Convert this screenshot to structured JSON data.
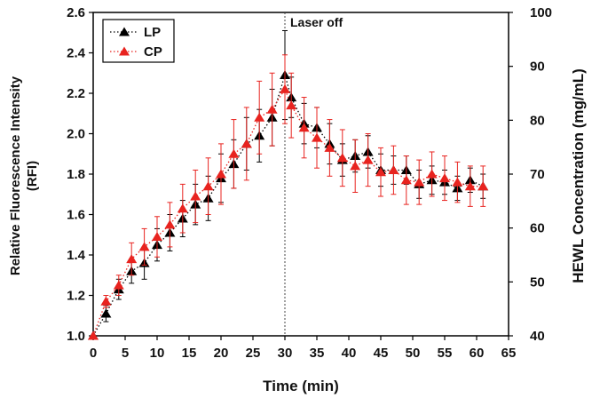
{
  "chart_data": {
    "type": "line",
    "xlabel": "Time (min)",
    "ylabel_lines": [
      "Relative Fluorescence Intensity",
      "(RFI)"
    ],
    "y2label": "HEWL Concentration (mg/mL)",
    "xlim": [
      0,
      65
    ],
    "ylim": [
      1.0,
      2.6
    ],
    "y2lim": [
      40,
      100
    ],
    "xticks": [
      "0",
      "5",
      "10",
      "15",
      "20",
      "25",
      "30",
      "35",
      "40",
      "45",
      "50",
      "55",
      "60",
      "65"
    ],
    "yticks": [
      "1.0",
      "1.2",
      "1.4",
      "1.6",
      "1.8",
      "2.0",
      "2.2",
      "2.4",
      "2.6"
    ],
    "y2ticks": [
      "40",
      "50",
      "60",
      "70",
      "80",
      "90",
      "100"
    ],
    "grid": false,
    "legend_position": "top-left",
    "annotation": {
      "text": "Laser off",
      "x": 30
    },
    "x": [
      0,
      2,
      4,
      6,
      8,
      10,
      12,
      14,
      16,
      18,
      20,
      22,
      24,
      26,
      28,
      30,
      31,
      33,
      35,
      37,
      39,
      41,
      43,
      45,
      47,
      49,
      51,
      53,
      55,
      57,
      59,
      61
    ],
    "series": [
      {
        "name": "LP",
        "color": "#000000",
        "values": [
          1.0,
          1.11,
          1.23,
          1.32,
          1.36,
          1.45,
          1.51,
          1.58,
          1.65,
          1.68,
          1.78,
          1.85,
          1.95,
          1.99,
          2.08,
          2.29,
          2.18,
          2.05,
          2.03,
          1.95,
          1.87,
          1.89,
          1.91,
          1.82,
          1.82,
          1.82,
          1.75,
          1.77,
          1.76,
          1.73,
          1.77,
          1.74
        ],
        "errors": [
          0,
          0.04,
          0.05,
          0.06,
          0.08,
          0.08,
          0.09,
          0.09,
          0.1,
          0.11,
          0.12,
          0.12,
          0.13,
          0.13,
          0.14,
          0.22,
          0.1,
          0.1,
          0.1,
          0.1,
          0.08,
          0.08,
          0.08,
          0.08,
          0.07,
          0.07,
          0.07,
          0.07,
          0.06,
          0.06,
          0.06,
          0.06
        ]
      },
      {
        "name": "CP",
        "color": "#e8231f",
        "values": [
          1.0,
          1.17,
          1.25,
          1.38,
          1.44,
          1.49,
          1.55,
          1.63,
          1.69,
          1.74,
          1.8,
          1.9,
          1.95,
          2.08,
          2.12,
          2.22,
          2.14,
          2.03,
          1.98,
          1.93,
          1.88,
          1.84,
          1.87,
          1.81,
          1.82,
          1.77,
          1.76,
          1.8,
          1.78,
          1.76,
          1.74,
          1.74
        ],
        "errors": [
          0,
          0.03,
          0.05,
          0.08,
          0.09,
          0.1,
          0.11,
          0.12,
          0.13,
          0.14,
          0.15,
          0.17,
          0.18,
          0.18,
          0.18,
          0.17,
          0.16,
          0.15,
          0.15,
          0.14,
          0.14,
          0.13,
          0.13,
          0.12,
          0.12,
          0.12,
          0.11,
          0.11,
          0.11,
          0.1,
          0.1,
          0.1
        ]
      }
    ]
  }
}
